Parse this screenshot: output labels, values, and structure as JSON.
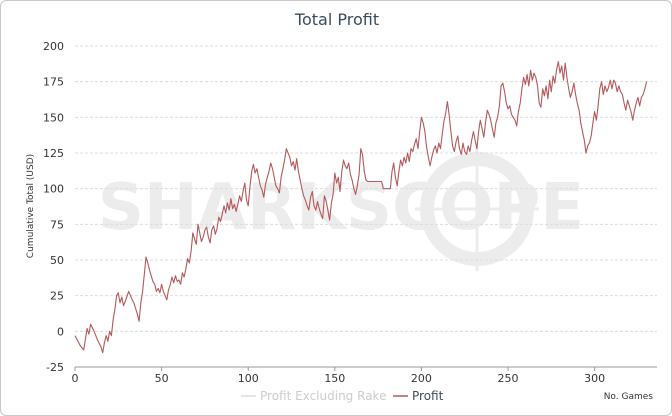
{
  "chart_data": {
    "type": "line",
    "title": "Total Profit",
    "ylabel": "Cumulative Total (USD)",
    "xlabel": "No. Games",
    "xlim": [
      0,
      336
    ],
    "ylim": [
      -25,
      200
    ],
    "x_ticks": [
      0,
      50,
      100,
      150,
      200,
      250,
      300
    ],
    "y_ticks": [
      -25,
      0,
      25,
      50,
      75,
      100,
      125,
      150,
      175,
      200
    ],
    "legend": [
      "Profit Excluding Rake",
      "Profit"
    ],
    "watermark": "SHARKSCOPE",
    "series": [
      {
        "name": "Profit",
        "color": "#b5585a",
        "points": [
          [
            0,
            -3
          ],
          [
            3,
            -10
          ],
          [
            5,
            -13
          ],
          [
            7,
            2
          ],
          [
            8,
            -2
          ],
          [
            9,
            5
          ],
          [
            11,
            0
          ],
          [
            13,
            -6
          ],
          [
            15,
            -11
          ],
          [
            16,
            -15
          ],
          [
            17,
            -8
          ],
          [
            18,
            -3
          ],
          [
            19,
            -7
          ],
          [
            20,
            0
          ],
          [
            21,
            -3
          ],
          [
            22,
            8
          ],
          [
            23,
            15
          ],
          [
            24,
            25
          ],
          [
            25,
            27
          ],
          [
            26,
            20
          ],
          [
            27,
            24
          ],
          [
            28,
            18
          ],
          [
            29,
            21
          ],
          [
            31,
            28
          ],
          [
            33,
            22
          ],
          [
            34,
            20
          ],
          [
            35,
            16
          ],
          [
            36,
            12
          ],
          [
            37,
            7
          ],
          [
            38,
            20
          ],
          [
            39,
            28
          ],
          [
            40,
            40
          ],
          [
            41,
            52
          ],
          [
            42,
            48
          ],
          [
            43,
            43
          ],
          [
            44,
            39
          ],
          [
            45,
            35
          ],
          [
            46,
            33
          ],
          [
            47,
            28
          ],
          [
            48,
            30
          ],
          [
            49,
            27
          ],
          [
            50,
            33
          ],
          [
            51,
            28
          ],
          [
            52,
            25
          ],
          [
            53,
            22
          ],
          [
            54,
            29
          ],
          [
            55,
            33
          ],
          [
            56,
            38
          ],
          [
            57,
            34
          ],
          [
            58,
            39
          ],
          [
            59,
            35
          ],
          [
            60,
            36
          ],
          [
            61,
            33
          ],
          [
            62,
            41
          ],
          [
            63,
            38
          ],
          [
            64,
            44
          ],
          [
            65,
            51
          ],
          [
            66,
            48
          ],
          [
            67,
            56
          ],
          [
            68,
            69
          ],
          [
            69,
            65
          ],
          [
            70,
            61
          ],
          [
            71,
            75
          ],
          [
            72,
            69
          ],
          [
            73,
            63
          ],
          [
            74,
            66
          ],
          [
            75,
            71
          ],
          [
            76,
            73
          ],
          [
            77,
            66
          ],
          [
            78,
            62
          ],
          [
            79,
            71
          ],
          [
            80,
            74
          ],
          [
            81,
            68
          ],
          [
            82,
            72
          ],
          [
            83,
            80
          ],
          [
            84,
            77
          ],
          [
            85,
            82
          ],
          [
            86,
            88
          ],
          [
            87,
            83
          ],
          [
            88,
            90
          ],
          [
            89,
            85
          ],
          [
            90,
            93
          ],
          [
            91,
            86
          ],
          [
            92,
            89
          ],
          [
            93,
            84
          ],
          [
            94,
            89
          ],
          [
            95,
            95
          ],
          [
            96,
            91
          ],
          [
            97,
            98
          ],
          [
            98,
            104
          ],
          [
            99,
            92
          ],
          [
            100,
            88
          ],
          [
            101,
            101
          ],
          [
            102,
            112
          ],
          [
            103,
            117
          ],
          [
            104,
            111
          ],
          [
            105,
            114
          ],
          [
            106,
            108
          ],
          [
            107,
            102
          ],
          [
            108,
            99
          ],
          [
            109,
            94
          ],
          [
            110,
            103
          ],
          [
            111,
            108
          ],
          [
            112,
            112
          ],
          [
            113,
            118
          ],
          [
            114,
            114
          ],
          [
            115,
            108
          ],
          [
            116,
            102
          ],
          [
            117,
            100
          ],
          [
            118,
            97
          ],
          [
            119,
            108
          ],
          [
            120,
            114
          ],
          [
            121,
            120
          ],
          [
            122,
            128
          ],
          [
            123,
            125
          ],
          [
            124,
            122
          ],
          [
            125,
            116
          ],
          [
            126,
            119
          ],
          [
            127,
            113
          ],
          [
            128,
            121
          ],
          [
            129,
            112
          ],
          [
            130,
            106
          ],
          [
            131,
            100
          ],
          [
            132,
            95
          ],
          [
            133,
            92
          ],
          [
            134,
            88
          ],
          [
            135,
            85
          ],
          [
            136,
            94
          ],
          [
            137,
            98
          ],
          [
            138,
            88
          ],
          [
            139,
            85
          ],
          [
            140,
            91
          ],
          [
            141,
            86
          ],
          [
            142,
            82
          ],
          [
            143,
            79
          ],
          [
            144,
            95
          ],
          [
            145,
            91
          ],
          [
            146,
            85
          ],
          [
            147,
            78
          ],
          [
            148,
            90
          ],
          [
            149,
            96
          ],
          [
            150,
            111
          ],
          [
            151,
            104
          ],
          [
            152,
            108
          ],
          [
            153,
            98
          ],
          [
            154,
            112
          ],
          [
            155,
            120
          ],
          [
            156,
            116
          ],
          [
            157,
            114
          ],
          [
            158,
            118
          ],
          [
            159,
            110
          ],
          [
            160,
            106
          ],
          [
            161,
            100
          ],
          [
            162,
            96
          ],
          [
            163,
            102
          ],
          [
            164,
            110
          ],
          [
            165,
            128
          ],
          [
            166,
            124
          ],
          [
            167,
            112
          ],
          [
            168,
            106
          ],
          [
            169,
            105
          ],
          [
            170,
            105
          ],
          [
            171,
            105
          ],
          [
            172,
            105
          ],
          [
            173,
            105
          ],
          [
            174,
            105
          ],
          [
            175,
            105
          ],
          [
            176,
            105
          ],
          [
            177,
            105
          ],
          [
            178,
            100
          ],
          [
            179,
            100
          ],
          [
            180,
            100
          ],
          [
            181,
            100
          ],
          [
            182,
            100
          ],
          [
            183,
            112
          ],
          [
            184,
            118
          ],
          [
            185,
            108
          ],
          [
            186,
            102
          ],
          [
            187,
            112
          ],
          [
            188,
            120
          ],
          [
            189,
            116
          ],
          [
            190,
            122
          ],
          [
            191,
            118
          ],
          [
            192,
            125
          ],
          [
            193,
            119
          ],
          [
            194,
            128
          ],
          [
            195,
            126
          ],
          [
            196,
            131
          ],
          [
            197,
            135
          ],
          [
            198,
            128
          ],
          [
            199,
            140
          ],
          [
            200,
            150
          ],
          [
            201,
            146
          ],
          [
            202,
            140
          ],
          [
            203,
            129
          ],
          [
            204,
            122
          ],
          [
            205,
            116
          ],
          [
            206,
            122
          ],
          [
            207,
            127
          ],
          [
            208,
            130
          ],
          [
            209,
            125
          ],
          [
            210,
            132
          ],
          [
            211,
            128
          ],
          [
            212,
            138
          ],
          [
            213,
            147
          ],
          [
            214,
            153
          ],
          [
            215,
            161
          ],
          [
            216,
            152
          ],
          [
            217,
            140
          ],
          [
            218,
            130
          ],
          [
            219,
            126
          ],
          [
            220,
            133
          ],
          [
            221,
            137
          ],
          [
            222,
            128
          ],
          [
            223,
            124
          ],
          [
            224,
            132
          ],
          [
            225,
            126
          ],
          [
            226,
            124
          ],
          [
            227,
            130
          ],
          [
            228,
            126
          ],
          [
            229,
            134
          ],
          [
            230,
            140
          ],
          [
            231,
            134
          ],
          [
            232,
            128
          ],
          [
            233,
            140
          ],
          [
            234,
            148
          ],
          [
            235,
            142
          ],
          [
            236,
            136
          ],
          [
            237,
            146
          ],
          [
            238,
            155
          ],
          [
            239,
            152
          ],
          [
            240,
            148
          ],
          [
            241,
            142
          ],
          [
            242,
            136
          ],
          [
            243,
            146
          ],
          [
            244,
            150
          ],
          [
            245,
            158
          ],
          [
            246,
            172
          ],
          [
            247,
            174
          ],
          [
            248,
            168
          ],
          [
            249,
            160
          ],
          [
            250,
            156
          ],
          [
            251,
            158
          ],
          [
            252,
            152
          ],
          [
            253,
            150
          ],
          [
            254,
            148
          ],
          [
            255,
            144
          ],
          [
            256,
            154
          ],
          [
            257,
            160
          ],
          [
            258,
            170
          ],
          [
            259,
            178
          ],
          [
            260,
            173
          ],
          [
            261,
            180
          ],
          [
            262,
            172
          ],
          [
            263,
            183
          ],
          [
            264,
            176
          ],
          [
            265,
            181
          ],
          [
            266,
            178
          ],
          [
            267,
            172
          ],
          [
            268,
            160
          ],
          [
            269,
            157
          ],
          [
            270,
            170
          ],
          [
            271,
            165
          ],
          [
            272,
            172
          ],
          [
            273,
            163
          ],
          [
            274,
            176
          ],
          [
            275,
            168
          ],
          [
            276,
            179
          ],
          [
            277,
            174
          ],
          [
            278,
            183
          ],
          [
            279,
            189
          ],
          [
            280,
            181
          ],
          [
            281,
            186
          ],
          [
            282,
            176
          ],
          [
            283,
            188
          ],
          [
            284,
            178
          ],
          [
            285,
            170
          ],
          [
            286,
            164
          ],
          [
            287,
            168
          ],
          [
            288,
            174
          ],
          [
            289,
            166
          ],
          [
            290,
            160
          ],
          [
            291,
            155
          ],
          [
            292,
            146
          ],
          [
            293,
            140
          ],
          [
            294,
            134
          ],
          [
            295,
            125
          ],
          [
            296,
            130
          ],
          [
            297,
            132
          ],
          [
            298,
            137
          ],
          [
            299,
            146
          ],
          [
            300,
            154
          ],
          [
            301,
            148
          ],
          [
            302,
            158
          ],
          [
            303,
            170
          ],
          [
            304,
            175
          ],
          [
            305,
            166
          ],
          [
            306,
            172
          ],
          [
            307,
            168
          ],
          [
            308,
            171
          ],
          [
            309,
            176
          ],
          [
            310,
            170
          ],
          [
            311,
            176
          ],
          [
            312,
            174
          ],
          [
            313,
            168
          ],
          [
            314,
            172
          ],
          [
            315,
            168
          ],
          [
            316,
            166
          ],
          [
            317,
            160
          ],
          [
            318,
            155
          ],
          [
            319,
            162
          ],
          [
            320,
            158
          ],
          [
            321,
            154
          ],
          [
            322,
            148
          ],
          [
            323,
            155
          ],
          [
            324,
            160
          ],
          [
            325,
            164
          ],
          [
            326,
            158
          ],
          [
            327,
            164
          ],
          [
            328,
            166
          ],
          [
            329,
            170
          ],
          [
            330,
            175
          ]
        ]
      },
      {
        "name": "Profit Excluding Rake",
        "color": "#dcdcdc",
        "points": []
      }
    ]
  }
}
